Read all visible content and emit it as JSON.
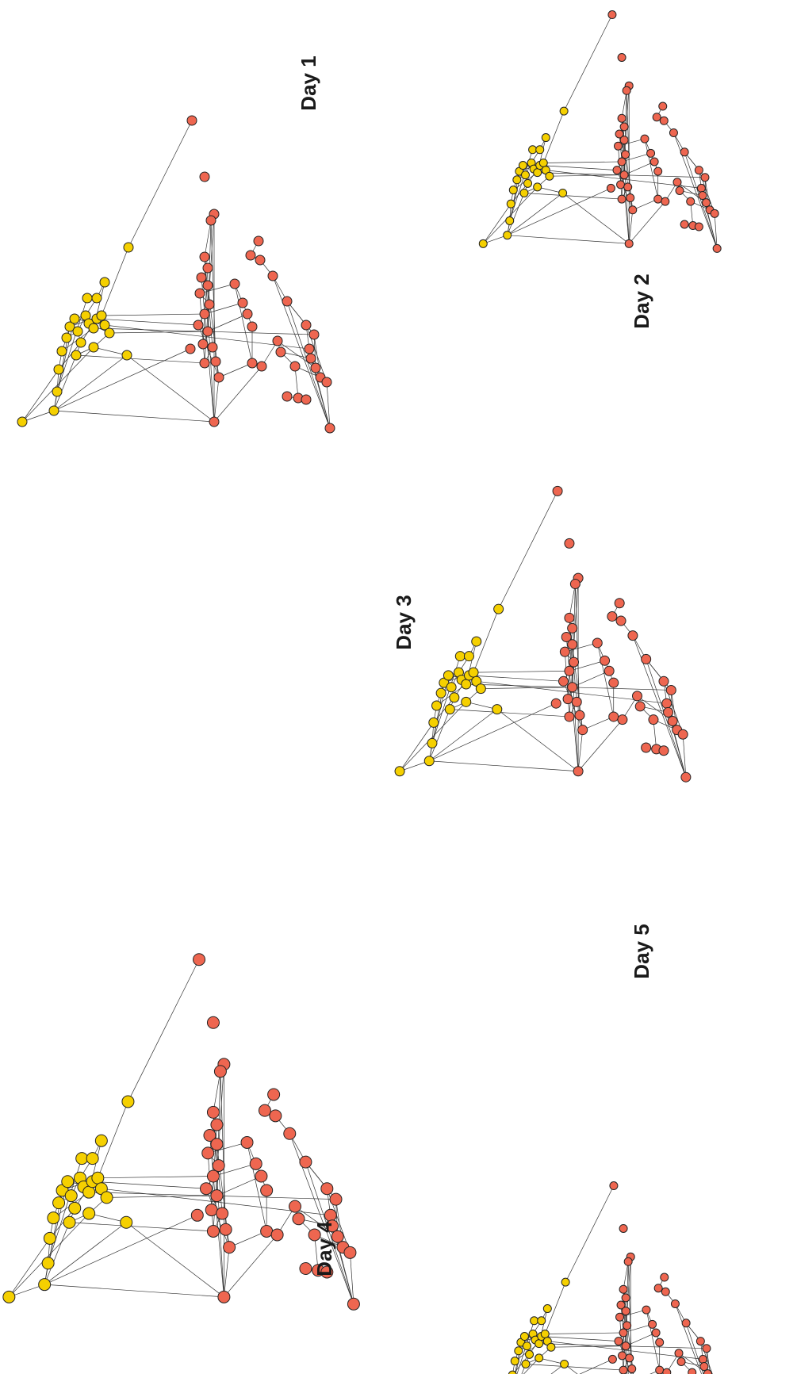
{
  "colors": {
    "group_a": "#f5d000",
    "group_b": "#ee6650",
    "edge": "#333333",
    "outline": "#222222"
  },
  "panels": [
    {
      "label": "Day 1"
    },
    {
      "label": "Day 2"
    },
    {
      "label": "Day 3"
    },
    {
      "label": "Day 4"
    },
    {
      "label": "Day 5"
    }
  ]
}
